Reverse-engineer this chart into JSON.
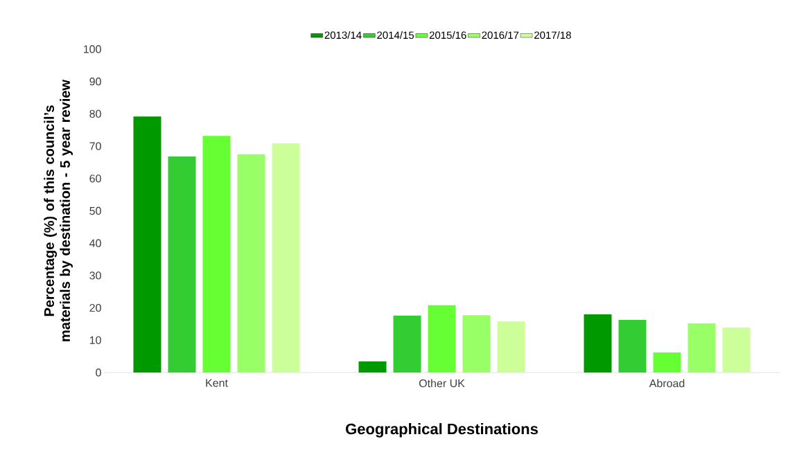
{
  "chart_data": {
    "type": "bar",
    "xlabel": "Geographical Destinations",
    "ylabel": "Percentage (%) of this council’s materials by destination - 5 year review",
    "categories": [
      "Kent",
      "Other UK",
      "Abroad"
    ],
    "series": [
      {
        "name": "2013/14",
        "color": "#009900",
        "values": [
          79.2,
          3.4,
          18.0
        ]
      },
      {
        "name": "2014/15",
        "color": "#33cc33",
        "values": [
          66.8,
          17.6,
          16.3
        ]
      },
      {
        "name": "2015/16",
        "color": "#66ff33",
        "values": [
          73.2,
          20.8,
          6.2
        ]
      },
      {
        "name": "2016/17",
        "color": "#99ff66",
        "values": [
          67.5,
          17.7,
          15.2
        ]
      },
      {
        "name": "2017/18",
        "color": "#ccff99",
        "values": [
          70.9,
          15.8,
          13.9
        ]
      }
    ],
    "ylim": [
      0,
      100
    ],
    "yticks": [
      0,
      10,
      20,
      30,
      40,
      50,
      60,
      70,
      80,
      90,
      100
    ],
    "legend": "top"
  }
}
